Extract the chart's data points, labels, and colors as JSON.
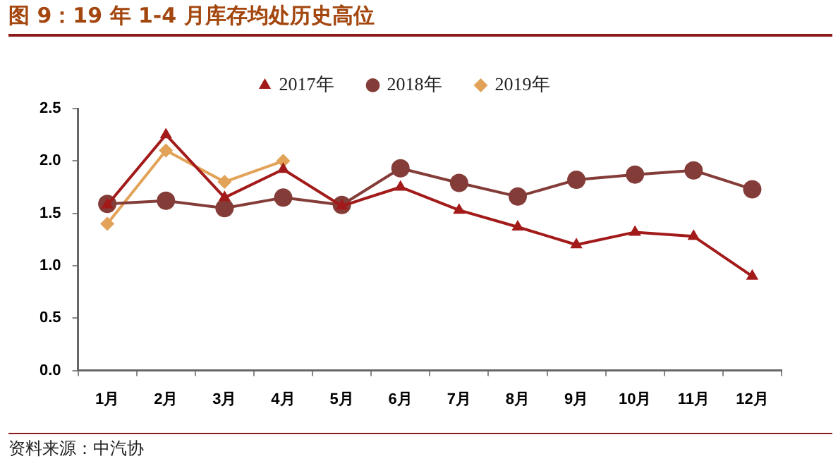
{
  "chart_data": {
    "type": "line",
    "title": "图 9：19 年 1-4 月库存均处历史高位",
    "categories": [
      "1月",
      "2月",
      "3月",
      "4月",
      "5月",
      "6月",
      "7月",
      "8月",
      "9月",
      "10月",
      "11月",
      "12月"
    ],
    "series": [
      {
        "name": "2017年",
        "color": "#a31a1a",
        "marker": "triangle",
        "values": [
          1.58,
          2.25,
          1.65,
          1.92,
          1.57,
          1.75,
          1.53,
          1.37,
          1.2,
          1.32,
          1.28,
          0.9
        ]
      },
      {
        "name": "2018年",
        "color": "#843c38",
        "marker": "circle",
        "values": [
          1.59,
          1.62,
          1.55,
          1.65,
          1.58,
          1.93,
          1.79,
          1.66,
          1.82,
          1.87,
          1.91,
          1.73
        ]
      },
      {
        "name": "2019年",
        "color": "#e2a257",
        "marker": "diamond",
        "values": [
          1.4,
          2.1,
          1.8,
          2.0,
          null,
          null,
          null,
          null,
          null,
          null,
          null,
          null
        ]
      }
    ],
    "ylim": [
      0,
      2.5
    ],
    "yticks": [
      {
        "value": 0,
        "label": "0.0"
      },
      0.5,
      {
        "value": 1,
        "label": "1.0"
      },
      1.5,
      {
        "value": 2,
        "label": "2.0"
      },
      2.5
    ],
    "grid": false,
    "legend": "top",
    "line_style": "solid",
    "annotations": [
      "资料来源：中汽协"
    ]
  }
}
